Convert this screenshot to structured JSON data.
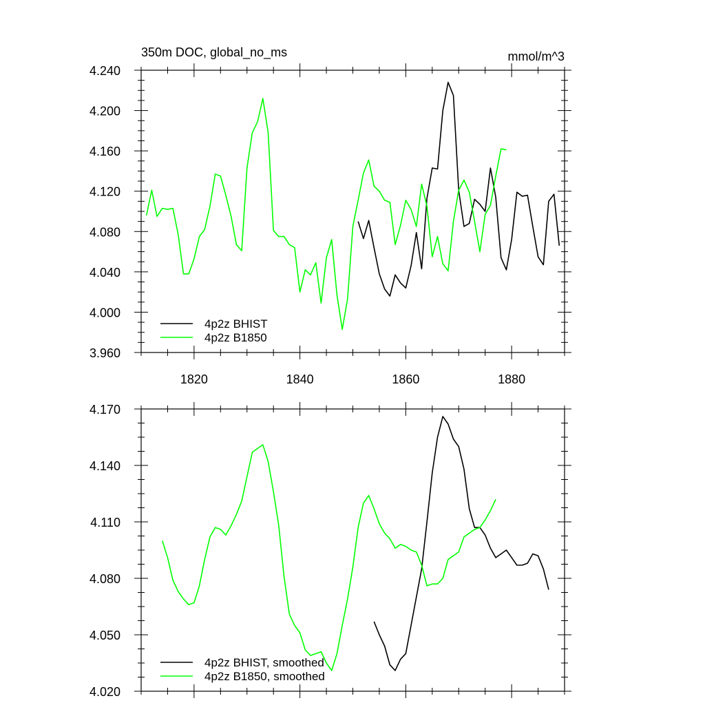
{
  "chart_data": [
    {
      "type": "line",
      "title": "350m DOC, global_no_ms",
      "units": "mmol/m^3",
      "xlim": [
        1810,
        1890
      ],
      "ylim": [
        3.96,
        4.24
      ],
      "x_ticks": [
        1820,
        1840,
        1860,
        1880
      ],
      "x_tick_labels": [
        "1820",
        "1840",
        "1860",
        "1880"
      ],
      "y_ticks": [
        3.96,
        4.0,
        4.04,
        4.08,
        4.12,
        4.16,
        4.2,
        4.24
      ],
      "y_tick_labels": [
        "3.960",
        "4.000",
        "4.040",
        "4.080",
        "4.120",
        "4.160",
        "4.200",
        "4.240"
      ],
      "grid": false,
      "legend_position": "bottom-left",
      "series": [
        {
          "name": "4p2z BHIST",
          "color": "#000000",
          "x": [
            1851,
            1852,
            1853,
            1854,
            1855,
            1856,
            1857,
            1858,
            1859,
            1860,
            1861,
            1862,
            1863,
            1864,
            1865,
            1866,
            1867,
            1868,
            1869,
            1870,
            1871,
            1872,
            1873,
            1874,
            1875,
            1876,
            1877,
            1878,
            1879,
            1880,
            1881,
            1882,
            1883,
            1884,
            1885,
            1886,
            1887,
            1888,
            1889
          ],
          "y": [
            4.09,
            4.073,
            4.091,
            4.064,
            4.038,
            4.023,
            4.016,
            4.037,
            4.029,
            4.024,
            4.046,
            4.079,
            4.043,
            4.113,
            4.143,
            4.142,
            4.2,
            4.228,
            4.215,
            4.121,
            4.085,
            4.088,
            4.112,
            4.107,
            4.1,
            4.143,
            4.114,
            4.054,
            4.042,
            4.072,
            4.119,
            4.115,
            4.116,
            4.085,
            4.055,
            4.047,
            4.11,
            4.117,
            4.066
          ]
        },
        {
          "name": "4p2z B1850",
          "color": "#00ff00",
          "x": [
            1811,
            1812,
            1813,
            1814,
            1815,
            1816,
            1817,
            1818,
            1819,
            1820,
            1821,
            1822,
            1823,
            1824,
            1825,
            1826,
            1827,
            1828,
            1829,
            1830,
            1831,
            1832,
            1833,
            1834,
            1835,
            1836,
            1837,
            1838,
            1839,
            1840,
            1841,
            1842,
            1843,
            1844,
            1845,
            1846,
            1847,
            1848,
            1849,
            1850,
            1851,
            1852,
            1853,
            1854,
            1855,
            1856,
            1857,
            1858,
            1859,
            1860,
            1861,
            1862,
            1863,
            1864,
            1865,
            1866,
            1867,
            1868,
            1869,
            1870,
            1871,
            1872,
            1873,
            1874,
            1875,
            1876,
            1877,
            1878,
            1879
          ],
          "y": [
            4.096,
            4.121,
            4.095,
            4.103,
            4.102,
            4.103,
            4.077,
            4.038,
            4.038,
            4.053,
            4.075,
            4.082,
            4.105,
            4.137,
            4.135,
            4.116,
            4.095,
            4.067,
            4.061,
            4.143,
            4.178,
            4.189,
            4.212,
            4.178,
            4.081,
            4.075,
            4.075,
            4.067,
            4.064,
            4.02,
            4.042,
            4.037,
            4.049,
            4.009,
            4.054,
            4.072,
            4.017,
            3.983,
            4.013,
            4.085,
            4.111,
            4.138,
            4.151,
            4.125,
            4.12,
            4.111,
            4.109,
            4.067,
            4.086,
            4.111,
            4.102,
            4.085,
            4.127,
            4.105,
            4.055,
            4.075,
            4.048,
            4.041,
            4.09,
            4.121,
            4.131,
            4.119,
            4.09,
            4.06,
            4.097,
            4.106,
            4.135,
            4.162,
            4.161
          ]
        }
      ]
    },
    {
      "type": "line",
      "xlim": [
        1810,
        1890
      ],
      "ylim": [
        4.02,
        4.17
      ],
      "x_ticks": [
        1820,
        1840,
        1860,
        1880
      ],
      "y_ticks": [
        4.02,
        4.05,
        4.08,
        4.11,
        4.14,
        4.17
      ],
      "y_tick_labels": [
        "4.020",
        "4.050",
        "4.080",
        "4.110",
        "4.140",
        "4.170"
      ],
      "grid": false,
      "legend_position": "bottom-left",
      "series": [
        {
          "name": "4p2z BHIST, smoothed",
          "color": "#000000",
          "x": [
            1854,
            1855,
            1856,
            1857,
            1858,
            1859,
            1860,
            1861,
            1862,
            1863,
            1864,
            1865,
            1866,
            1867,
            1868,
            1869,
            1870,
            1871,
            1872,
            1873,
            1874,
            1875,
            1876,
            1877,
            1878,
            1879,
            1880,
            1881,
            1882,
            1883,
            1884,
            1885,
            1886,
            1887
          ],
          "y": [
            4.057,
            4.05,
            4.044,
            4.034,
            4.031,
            4.037,
            4.04,
            4.055,
            4.07,
            4.085,
            4.11,
            4.136,
            4.155,
            4.166,
            4.162,
            4.154,
            4.15,
            4.138,
            4.117,
            4.107,
            4.107,
            4.103,
            4.096,
            4.091,
            4.093,
            4.095,
            4.091,
            4.087,
            4.087,
            4.088,
            4.093,
            4.092,
            4.085,
            4.074
          ]
        },
        {
          "name": "4p2z B1850, smoothed",
          "color": "#00ff00",
          "x": [
            1814,
            1815,
            1816,
            1817,
            1818,
            1819,
            1820,
            1821,
            1822,
            1823,
            1824,
            1825,
            1826,
            1827,
            1828,
            1829,
            1830,
            1831,
            1832,
            1833,
            1834,
            1835,
            1836,
            1837,
            1838,
            1839,
            1840,
            1841,
            1842,
            1843,
            1844,
            1845,
            1846,
            1847,
            1848,
            1849,
            1850,
            1851,
            1852,
            1853,
            1854,
            1855,
            1856,
            1857,
            1858,
            1859,
            1860,
            1861,
            1862,
            1863,
            1864,
            1865,
            1866,
            1867,
            1868,
            1869,
            1870,
            1871,
            1872,
            1873,
            1874,
            1875,
            1876,
            1877
          ],
          "y": [
            4.1,
            4.091,
            4.079,
            4.073,
            4.069,
            4.066,
            4.067,
            4.076,
            4.09,
            4.102,
            4.107,
            4.106,
            4.103,
            4.108,
            4.114,
            4.121,
            4.134,
            4.147,
            4.149,
            4.151,
            4.142,
            4.126,
            4.108,
            4.081,
            4.061,
            4.055,
            4.051,
            4.042,
            4.039,
            4.04,
            4.041,
            4.035,
            4.031,
            4.04,
            4.055,
            4.069,
            4.086,
            4.107,
            4.12,
            4.124,
            4.117,
            4.109,
            4.104,
            4.101,
            4.096,
            4.098,
            4.097,
            4.095,
            4.094,
            4.087,
            4.076,
            4.077,
            4.077,
            4.08,
            4.09,
            4.092,
            4.094,
            4.102,
            4.104,
            4.106,
            4.107,
            4.111,
            4.116,
            4.122
          ]
        }
      ]
    }
  ]
}
